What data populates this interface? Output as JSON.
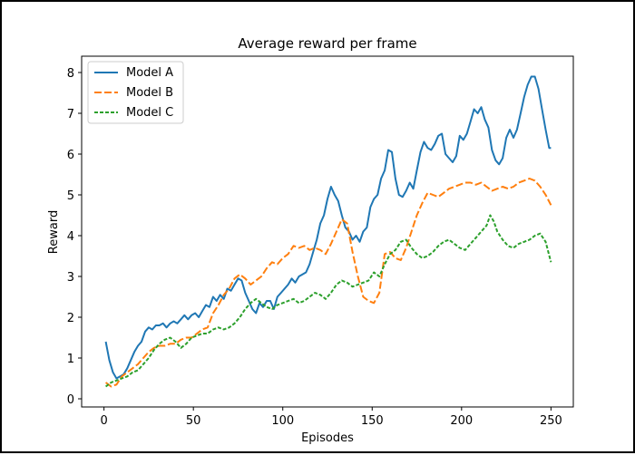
{
  "chart_data": {
    "type": "line",
    "title": "Average reward per frame",
    "xlabel": "Episodes",
    "ylabel": "Reward",
    "xlim": [
      -12.5,
      262.5
    ],
    "ylim": [
      -0.2,
      8.4
    ],
    "xticks": [
      0,
      50,
      100,
      150,
      200,
      250
    ],
    "yticks": [
      0,
      1,
      2,
      3,
      4,
      5,
      6,
      7,
      8
    ],
    "grid": false,
    "legend": "top-left",
    "series": [
      {
        "name": "Model A",
        "color": "#1f77b4",
        "style": "solid",
        "x": [
          1,
          3,
          5,
          7,
          9,
          11,
          13,
          15,
          17,
          19,
          21,
          23,
          25,
          27,
          29,
          31,
          33,
          35,
          37,
          39,
          41,
          43,
          45,
          47,
          49,
          51,
          53,
          55,
          57,
          59,
          61,
          63,
          65,
          67,
          69,
          71,
          73,
          75,
          77,
          79,
          81,
          83,
          85,
          87,
          89,
          91,
          93,
          95,
          97,
          99,
          101,
          103,
          105,
          107,
          109,
          111,
          113,
          115,
          117,
          119,
          121,
          123,
          125,
          127,
          129,
          131,
          133,
          135,
          137,
          139,
          141,
          143,
          145,
          147,
          149,
          151,
          153,
          155,
          157,
          159,
          161,
          163,
          165,
          167,
          169,
          171,
          173,
          175,
          177,
          179,
          181,
          183,
          185,
          187,
          189,
          191,
          193,
          195,
          197,
          199,
          201,
          203,
          205,
          207,
          209,
          211,
          213,
          215,
          217,
          219,
          221,
          223,
          225,
          227,
          229,
          231,
          233,
          235,
          237,
          239,
          241,
          243,
          245,
          247,
          249,
          250
        ],
        "y": [
          1.4,
          0.95,
          0.65,
          0.5,
          0.55,
          0.6,
          0.75,
          0.95,
          1.15,
          1.3,
          1.4,
          1.65,
          1.75,
          1.7,
          1.8,
          1.8,
          1.85,
          1.75,
          1.85,
          1.9,
          1.85,
          1.95,
          2.05,
          1.95,
          2.05,
          2.1,
          2.0,
          2.15,
          2.3,
          2.25,
          2.5,
          2.4,
          2.55,
          2.45,
          2.7,
          2.65,
          2.8,
          2.95,
          2.9,
          2.6,
          2.4,
          2.2,
          2.1,
          2.35,
          2.25,
          2.4,
          2.4,
          2.2,
          2.5,
          2.6,
          2.7,
          2.8,
          2.95,
          2.85,
          3.0,
          3.05,
          3.1,
          3.3,
          3.6,
          3.9,
          4.3,
          4.5,
          4.9,
          5.2,
          5.0,
          4.85,
          4.5,
          4.2,
          4.1,
          3.9,
          4.0,
          3.85,
          4.1,
          4.2,
          4.7,
          4.9,
          5.0,
          5.4,
          5.6,
          6.1,
          6.05,
          5.4,
          5.0,
          4.95,
          5.1,
          5.3,
          5.15,
          5.6,
          6.05,
          6.3,
          6.15,
          6.1,
          6.25,
          6.45,
          6.5,
          6.0,
          5.9,
          5.8,
          5.95,
          6.45,
          6.35,
          6.5,
          6.8,
          7.1,
          7.0,
          7.15,
          6.85,
          6.65,
          6.1,
          5.85,
          5.75,
          5.9,
          6.4,
          6.6,
          6.4,
          6.6,
          7.0,
          7.4,
          7.7,
          7.9,
          7.9,
          7.6,
          7.1,
          6.6,
          6.15,
          6.15
        ]
      },
      {
        "name": "Model B",
        "color": "#ff7f0e",
        "style": "dashed",
        "x": [
          1,
          4,
          7,
          10,
          13,
          16,
          19,
          22,
          25,
          28,
          31,
          34,
          37,
          40,
          43,
          46,
          49,
          52,
          55,
          58,
          61,
          64,
          67,
          70,
          73,
          76,
          79,
          82,
          85,
          88,
          91,
          94,
          97,
          100,
          103,
          106,
          109,
          112,
          115,
          118,
          121,
          124,
          127,
          130,
          133,
          136,
          139,
          142,
          145,
          148,
          151,
          154,
          157,
          160,
          163,
          166,
          169,
          172,
          175,
          178,
          181,
          184,
          187,
          190,
          193,
          196,
          199,
          202,
          205,
          208,
          211,
          214,
          217,
          220,
          223,
          226,
          229,
          232,
          235,
          238,
          241,
          244,
          247,
          250
        ],
        "y": [
          0.4,
          0.3,
          0.35,
          0.55,
          0.65,
          0.75,
          0.85,
          1.0,
          1.15,
          1.25,
          1.3,
          1.3,
          1.35,
          1.35,
          1.45,
          1.5,
          1.5,
          1.6,
          1.7,
          1.75,
          2.1,
          2.3,
          2.55,
          2.7,
          2.95,
          3.05,
          2.95,
          2.8,
          2.9,
          3.0,
          3.2,
          3.35,
          3.3,
          3.45,
          3.55,
          3.75,
          3.7,
          3.75,
          3.65,
          3.7,
          3.65,
          3.55,
          3.8,
          4.1,
          4.4,
          4.3,
          3.6,
          3.0,
          2.5,
          2.4,
          2.35,
          2.6,
          3.55,
          3.6,
          3.45,
          3.4,
          3.7,
          4.1,
          4.5,
          4.8,
          5.05,
          5.0,
          4.95,
          5.05,
          5.15,
          5.2,
          5.25,
          5.3,
          5.3,
          5.25,
          5.3,
          5.2,
          5.1,
          5.15,
          5.2,
          5.15,
          5.2,
          5.3,
          5.35,
          5.4,
          5.35,
          5.2,
          5.0,
          4.75
        ]
      },
      {
        "name": "Model C",
        "color": "#2ca02c",
        "style": "dotted",
        "x": [
          1,
          4,
          7,
          10,
          13,
          16,
          19,
          22,
          25,
          28,
          31,
          34,
          37,
          40,
          43,
          46,
          49,
          52,
          55,
          58,
          61,
          64,
          67,
          70,
          73,
          76,
          79,
          82,
          85,
          88,
          91,
          94,
          97,
          100,
          103,
          106,
          109,
          112,
          115,
          118,
          121,
          124,
          127,
          130,
          133,
          136,
          139,
          142,
          145,
          148,
          151,
          154,
          157,
          160,
          163,
          166,
          169,
          172,
          175,
          178,
          181,
          184,
          187,
          190,
          193,
          196,
          199,
          202,
          205,
          208,
          211,
          214,
          216,
          218,
          220,
          223,
          226,
          229,
          232,
          235,
          238,
          241,
          244,
          247,
          250
        ],
        "y": [
          0.3,
          0.4,
          0.45,
          0.5,
          0.55,
          0.65,
          0.7,
          0.85,
          1.0,
          1.2,
          1.35,
          1.45,
          1.5,
          1.4,
          1.25,
          1.35,
          1.5,
          1.55,
          1.6,
          1.6,
          1.7,
          1.75,
          1.7,
          1.75,
          1.85,
          2.0,
          2.2,
          2.35,
          2.45,
          2.35,
          2.25,
          2.2,
          2.3,
          2.35,
          2.4,
          2.45,
          2.35,
          2.4,
          2.5,
          2.6,
          2.55,
          2.45,
          2.6,
          2.8,
          2.9,
          2.85,
          2.75,
          2.8,
          2.85,
          2.9,
          3.1,
          3.0,
          3.3,
          3.55,
          3.65,
          3.85,
          3.9,
          3.7,
          3.55,
          3.45,
          3.5,
          3.6,
          3.75,
          3.85,
          3.9,
          3.8,
          3.7,
          3.65,
          3.8,
          3.95,
          4.1,
          4.25,
          4.5,
          4.35,
          4.1,
          3.9,
          3.75,
          3.7,
          3.8,
          3.85,
          3.9,
          4.0,
          4.05,
          3.85,
          3.35
        ]
      }
    ]
  }
}
